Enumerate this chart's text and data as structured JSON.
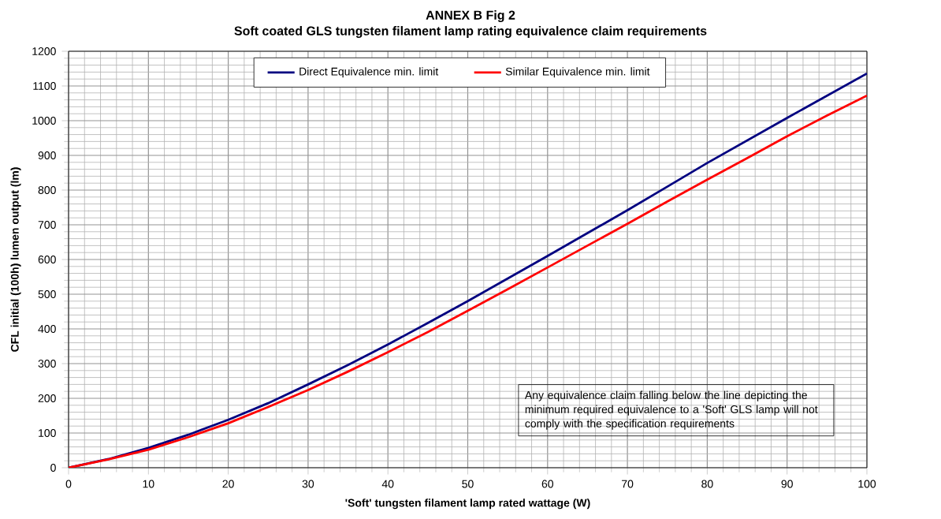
{
  "chart_data": {
    "type": "line",
    "title": "ANNEX B Fig 2",
    "subtitle": "Soft coated GLS tungsten filament lamp rating equivalence claim requirements",
    "xlabel": "'Soft' tungsten filament lamp rated wattage (W)",
    "ylabel": "CFL initial (100h) lumen output (lm)",
    "x": [
      0,
      5,
      10,
      15,
      20,
      25,
      30,
      35,
      40,
      45,
      50,
      55,
      60,
      65,
      70,
      75,
      80,
      85,
      90,
      95,
      100
    ],
    "series": [
      {
        "name": "Direct Equivalence min. limit",
        "color": "#000080",
        "values": [
          0,
          25,
          57,
          95,
          138,
          186,
          240,
          296,
          355,
          417,
          480,
          545,
          610,
          676,
          742,
          810,
          878,
          943,
          1008,
          1072,
          1136
        ]
      },
      {
        "name": "Similar Equivalence min. limit",
        "color": "#ff0000",
        "values": [
          0,
          24,
          52,
          88,
          128,
          175,
          224,
          277,
          333,
          391,
          452,
          514,
          577,
          640,
          703,
          767,
          830,
          892,
          955,
          1015,
          1072
        ]
      }
    ],
    "xlim": [
      0,
      100
    ],
    "ylim": [
      0,
      1200
    ],
    "xticks": [
      0,
      10,
      20,
      30,
      40,
      50,
      60,
      70,
      80,
      90,
      100
    ],
    "yticks": [
      0,
      100,
      200,
      300,
      400,
      500,
      600,
      700,
      800,
      900,
      1000,
      1100,
      1200
    ],
    "grid": true,
    "legend": "top",
    "line_style": "solid",
    "annotations": [
      "Any equivalence claim falling below the line depicting the minimum required equivalence to a 'Soft' GLS lamp will not comply with the specification requirements"
    ]
  }
}
